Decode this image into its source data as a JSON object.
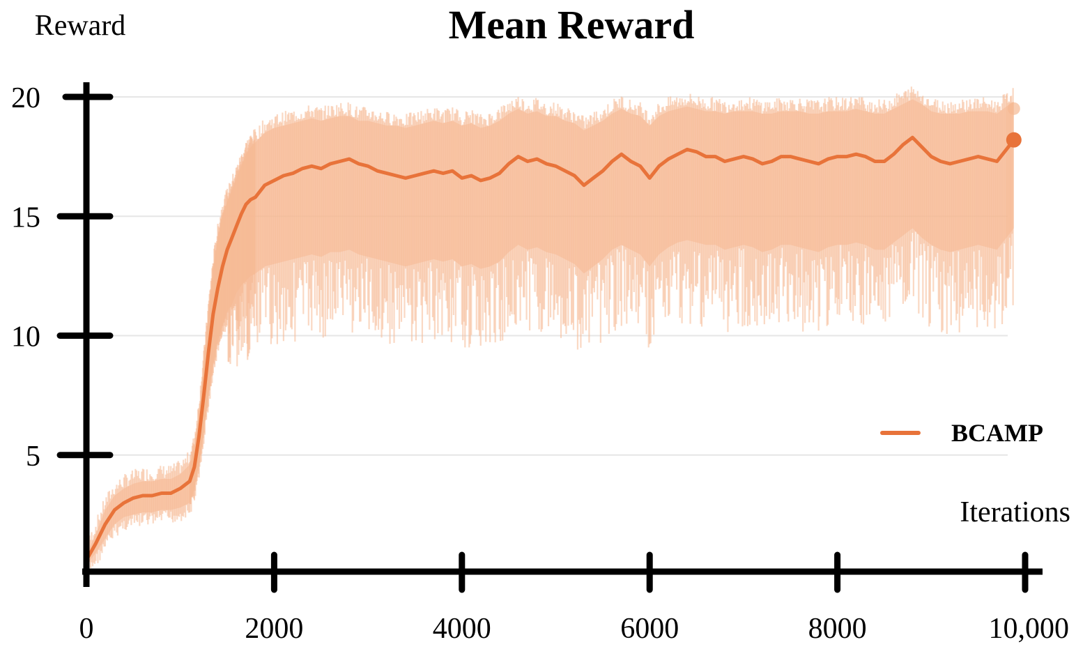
{
  "chart_data": {
    "type": "line",
    "title": "Mean Reward",
    "ylabel": "Reward",
    "xlabel": "Iterations",
    "xlim": [
      0,
      10000
    ],
    "ylim": [
      0,
      20
    ],
    "x_ticks": [
      0,
      2000,
      4000,
      6000,
      8000,
      10000
    ],
    "x_tick_labels": [
      "0",
      "2000",
      "4000",
      "6000",
      "8000",
      "10,000"
    ],
    "y_ticks": [
      5,
      10,
      15,
      20
    ],
    "y_tick_labels": [
      "5",
      "10",
      "15",
      "20"
    ],
    "grid": true,
    "legend": "right",
    "colors": {
      "line": "#e8733a",
      "band": "#f5b892",
      "axis": "#000000",
      "grid": "#e6e6e6"
    },
    "series": [
      {
        "name": "BCAMP",
        "x": [
          0,
          100,
          200,
          300,
          400,
          500,
          600,
          700,
          800,
          900,
          1000,
          1100,
          1150,
          1200,
          1250,
          1300,
          1350,
          1400,
          1450,
          1500,
          1550,
          1600,
          1650,
          1700,
          1750,
          1800,
          1900,
          2000,
          2100,
          2200,
          2300,
          2400,
          2500,
          2600,
          2700,
          2800,
          2900,
          3000,
          3100,
          3200,
          3300,
          3400,
          3500,
          3600,
          3700,
          3800,
          3900,
          4000,
          4100,
          4200,
          4300,
          4400,
          4500,
          4600,
          4700,
          4800,
          4900,
          5000,
          5100,
          5200,
          5300,
          5400,
          5500,
          5600,
          5700,
          5800,
          5900,
          6000,
          6100,
          6200,
          6300,
          6400,
          6500,
          6600,
          6700,
          6800,
          6900,
          7000,
          7100,
          7200,
          7300,
          7400,
          7500,
          7600,
          7700,
          7800,
          7900,
          8000,
          8100,
          8200,
          8300,
          8400,
          8500,
          8600,
          8700,
          8800,
          8900,
          9000,
          9100,
          9200,
          9300,
          9400,
          9500,
          9600,
          9700,
          9800,
          9880
        ],
        "y": [
          0.6,
          1.3,
          2.1,
          2.7,
          3.0,
          3.2,
          3.3,
          3.3,
          3.4,
          3.4,
          3.6,
          3.9,
          4.5,
          5.8,
          7.5,
          9.3,
          10.9,
          12.0,
          12.9,
          13.6,
          14.1,
          14.6,
          15.1,
          15.5,
          15.7,
          15.8,
          16.3,
          16.5,
          16.7,
          16.8,
          17.0,
          17.1,
          17.0,
          17.2,
          17.3,
          17.4,
          17.2,
          17.1,
          16.9,
          16.8,
          16.7,
          16.6,
          16.7,
          16.8,
          16.9,
          16.8,
          16.9,
          16.6,
          16.7,
          16.5,
          16.6,
          16.8,
          17.2,
          17.5,
          17.3,
          17.4,
          17.2,
          17.1,
          16.9,
          16.7,
          16.3,
          16.6,
          16.9,
          17.3,
          17.6,
          17.3,
          17.1,
          16.6,
          17.1,
          17.4,
          17.6,
          17.8,
          17.7,
          17.5,
          17.5,
          17.3,
          17.4,
          17.5,
          17.4,
          17.2,
          17.3,
          17.5,
          17.5,
          17.4,
          17.3,
          17.2,
          17.4,
          17.5,
          17.5,
          17.6,
          17.5,
          17.3,
          17.3,
          17.6,
          18.0,
          18.3,
          17.9,
          17.5,
          17.3,
          17.2,
          17.3,
          17.4,
          17.5,
          17.4,
          17.3,
          17.8,
          18.2
        ],
        "band_low": [
          0.4,
          0.9,
          1.5,
          2.1,
          2.4,
          2.5,
          2.6,
          2.6,
          2.7,
          2.7,
          2.8,
          3.0,
          3.6,
          4.6,
          6.0,
          7.5,
          8.8,
          9.8,
          10.4,
          11.0,
          11.3,
          11.8,
          12.1,
          12.3,
          12.5,
          12.6,
          12.9,
          13.0,
          13.1,
          13.2,
          13.3,
          13.4,
          13.3,
          13.5,
          13.5,
          13.6,
          13.4,
          13.3,
          13.2,
          13.1,
          13.0,
          12.9,
          13.0,
          13.1,
          13.2,
          13.1,
          13.2,
          12.9,
          13.0,
          12.8,
          12.9,
          13.1,
          13.5,
          13.8,
          13.6,
          13.7,
          13.5,
          13.4,
          13.2,
          13.0,
          12.6,
          12.9,
          13.2,
          13.6,
          13.8,
          13.6,
          13.4,
          12.9,
          13.4,
          13.7,
          13.9,
          14.0,
          13.9,
          13.8,
          13.8,
          13.6,
          13.7,
          13.8,
          13.7,
          13.5,
          13.6,
          13.8,
          13.8,
          13.7,
          13.6,
          13.5,
          13.7,
          13.8,
          13.8,
          13.9,
          13.8,
          13.6,
          13.6,
          13.9,
          14.2,
          14.5,
          14.1,
          13.8,
          13.6,
          13.5,
          13.6,
          13.7,
          13.8,
          13.7,
          13.6,
          14.1,
          14.5
        ],
        "band_high": [
          0.8,
          1.7,
          2.7,
          3.3,
          3.6,
          3.8,
          3.9,
          3.9,
          4.0,
          4.0,
          4.2,
          4.6,
          5.3,
          6.8,
          8.8,
          10.9,
          12.8,
          14.1,
          15.1,
          15.6,
          16.1,
          16.6,
          17.1,
          17.6,
          17.9,
          18.1,
          18.5,
          18.7,
          18.8,
          18.9,
          19.0,
          19.1,
          19.0,
          19.1,
          19.2,
          19.2,
          19.0,
          19.0,
          18.9,
          18.8,
          18.8,
          18.7,
          18.8,
          18.9,
          19.0,
          18.9,
          19.0,
          18.8,
          18.9,
          18.7,
          18.8,
          19.0,
          19.3,
          19.5,
          19.3,
          19.4,
          19.2,
          19.2,
          19.0,
          18.9,
          18.6,
          18.8,
          19.0,
          19.3,
          19.5,
          19.3,
          19.2,
          18.8,
          19.2,
          19.4,
          19.5,
          19.6,
          19.5,
          19.4,
          19.4,
          19.3,
          19.4,
          19.4,
          19.4,
          19.3,
          19.3,
          19.4,
          19.4,
          19.4,
          19.3,
          19.3,
          19.4,
          19.4,
          19.4,
          19.5,
          19.4,
          19.3,
          19.3,
          19.5,
          19.7,
          19.9,
          19.7,
          19.4,
          19.3,
          19.3,
          19.3,
          19.4,
          19.4,
          19.4,
          19.3,
          19.6,
          19.8
        ]
      }
    ]
  }
}
